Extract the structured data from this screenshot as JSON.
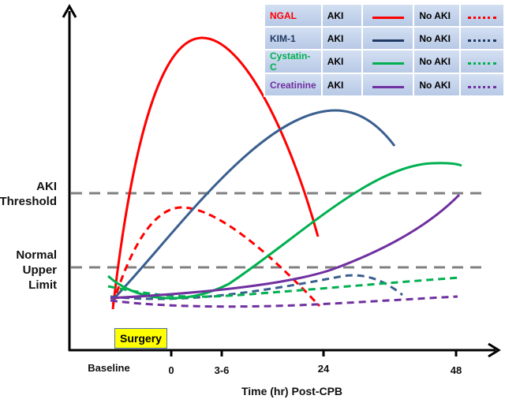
{
  "chart_data": {
    "type": "line",
    "xlabel": "Time (hr) Post-CPB",
    "x_ticks": [
      "Baseline",
      "0",
      "3-6",
      "24",
      "48"
    ],
    "y_reference_lines": [
      "AKI Threshold",
      "Normal Upper Limit"
    ],
    "annotation": "Surgery",
    "grid": false,
    "legend_position": "top-right",
    "legend": {
      "group_labels": [
        "AKI",
        "No AKI"
      ],
      "rows": [
        {
          "name": "NGAL",
          "color": "#ff0000"
        },
        {
          "name": "KIM-1",
          "color": "#1f3864"
        },
        {
          "name": "Cystatin-C",
          "color": "#00b050"
        },
        {
          "name": "Creatinine",
          "color": "#7030a0"
        }
      ]
    },
    "series": [
      {
        "name": "NGAL",
        "group": "AKI",
        "color": "#ff0000",
        "style": "solid"
      },
      {
        "name": "NGAL",
        "group": "No AKI",
        "color": "#ff0000",
        "style": "dashed"
      },
      {
        "name": "KIM-1",
        "group": "AKI",
        "color": "#3a5f8f",
        "style": "solid"
      },
      {
        "name": "KIM-1",
        "group": "No AKI",
        "color": "#3a5f8f",
        "style": "dashed"
      },
      {
        "name": "Cystatin-C",
        "group": "AKI",
        "color": "#00b050",
        "style": "solid"
      },
      {
        "name": "Cystatin-C",
        "group": "No AKI",
        "color": "#00b050",
        "style": "dashed"
      },
      {
        "name": "Creatinine",
        "group": "AKI",
        "color": "#7030a0",
        "style": "solid"
      },
      {
        "name": "Creatinine",
        "group": "No AKI",
        "color": "#7030a0",
        "style": "dashed"
      }
    ]
  }
}
